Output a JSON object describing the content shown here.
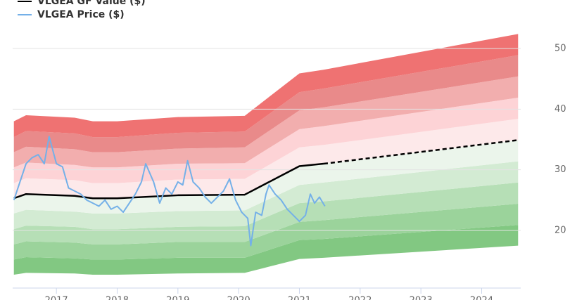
{
  "chart_data": {
    "type": "line",
    "series": [
      {
        "name": "VLGEA GF Value ($)",
        "color": "#000000",
        "x": [
          2016.3,
          2016.5,
          2017.3,
          2017.6,
          2018.0,
          2019.0,
          2020.1,
          2021.0,
          2021.4,
          2024.6
        ],
        "values": [
          25.3,
          26.0,
          25.7,
          25.3,
          25.3,
          25.8,
          25.9,
          30.6,
          31.0,
          34.9
        ]
      },
      {
        "name": "VLGEA Price ($)",
        "color": "#74b0e8",
        "x": [
          2016.3,
          2016.4,
          2016.5,
          2016.6,
          2016.7,
          2016.8,
          2016.88,
          2017.0,
          2017.1,
          2017.2,
          2017.3,
          2017.4,
          2017.5,
          2017.6,
          2017.7,
          2017.8,
          2017.9,
          2018.0,
          2018.1,
          2018.2,
          2018.3,
          2018.4,
          2018.47,
          2018.6,
          2018.7,
          2018.8,
          2018.9,
          2019.0,
          2019.08,
          2019.16,
          2019.25,
          2019.35,
          2019.45,
          2019.55,
          2019.65,
          2019.75,
          2019.85,
          2019.95,
          2020.05,
          2020.15,
          2020.2,
          2020.28,
          2020.38,
          2020.45,
          2020.5,
          2020.6,
          2020.7,
          2020.8,
          2020.9,
          2021.0,
          2021.1,
          2021.18,
          2021.25,
          2021.33,
          2021.42
        ],
        "values": [
          25,
          28,
          31,
          32,
          32.5,
          31,
          35.5,
          31,
          30.5,
          27,
          26.5,
          26,
          25,
          24.5,
          24,
          25,
          23.5,
          24,
          23,
          24.5,
          26,
          28,
          31,
          28,
          24.5,
          27,
          26,
          28,
          27.5,
          31.5,
          28,
          27,
          25.5,
          24.5,
          25.5,
          26.5,
          28.5,
          25,
          23,
          22,
          17.5,
          23,
          22.5,
          26,
          27.5,
          26,
          25,
          23.5,
          22.5,
          21.5,
          22.5,
          26,
          24.5,
          25.5,
          24
        ]
      }
    ],
    "projection_start_x": 2021.4,
    "band_edges": [
      [
        12.7,
        13.0,
        12.9,
        12.7,
        12.7,
        12.9,
        13.0,
        15.3,
        15.5,
        17.5
      ],
      [
        15.2,
        15.6,
        15.4,
        15.2,
        15.2,
        15.5,
        15.5,
        18.4,
        18.6,
        20.9
      ],
      [
        17.7,
        18.2,
        18.0,
        17.7,
        17.7,
        18.1,
        18.1,
        21.4,
        21.7,
        24.4
      ],
      [
        20.2,
        20.8,
        20.6,
        20.2,
        20.2,
        20.6,
        20.7,
        24.5,
        24.8,
        27.9
      ],
      [
        22.8,
        23.4,
        23.1,
        22.8,
        22.8,
        23.2,
        23.3,
        27.5,
        27.9,
        31.4
      ],
      [
        27.8,
        28.6,
        28.3,
        27.8,
        27.8,
        28.4,
        28.5,
        33.7,
        34.1,
        38.4
      ],
      [
        30.4,
        31.2,
        30.8,
        30.4,
        30.4,
        31.0,
        31.1,
        36.7,
        37.2,
        41.9
      ],
      [
        32.9,
        33.8,
        33.4,
        32.9,
        32.9,
        33.5,
        33.7,
        39.8,
        40.3,
        45.4
      ],
      [
        35.4,
        36.4,
        36.0,
        35.4,
        35.4,
        36.1,
        36.3,
        42.8,
        43.4,
        48.9
      ],
      [
        38.0,
        39.0,
        38.6,
        38.0,
        38.0,
        38.7,
        38.9,
        45.9,
        46.5,
        52.4
      ]
    ],
    "band_colors": [
      "#82c882",
      "#9bd39b",
      "#b6dfb6",
      "#d3ebd3",
      "#ebf5eb",
      "#fde9ea",
      "#fdd3d6",
      "#f2aeae",
      "#e98a8a",
      "#ef7272"
    ],
    "xlim": [
      2016.28,
      2024.62
    ],
    "xticks": [
      2017,
      2018,
      2019,
      2020,
      2021,
      2022,
      2023,
      2024
    ],
    "ylim": [
      10.5,
      58
    ],
    "yticks": [
      20,
      30,
      40,
      50
    ],
    "grid": true,
    "legend": "top-left"
  }
}
